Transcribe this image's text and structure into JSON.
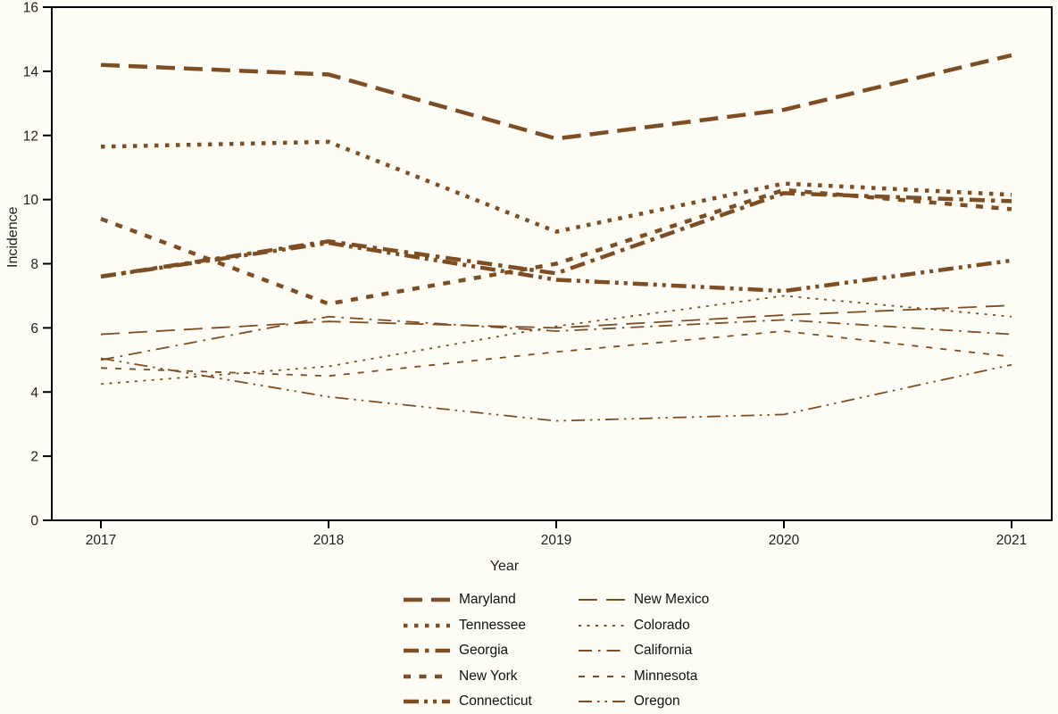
{
  "figure": {
    "background_color": "#fdfdf6",
    "line_color": "#7d4e24",
    "text_color": "#1f1f1f",
    "axis_color": "#000000",
    "xlabel": "Year",
    "ylabel": "Incidence"
  },
  "chart_data": {
    "type": "line",
    "title": "",
    "xlabel": "Year",
    "ylabel": "Incidence",
    "x": [
      2017,
      2018,
      2019,
      2020,
      2021
    ],
    "ylim": [
      0,
      16
    ],
    "ytick_step": 2,
    "grid": false,
    "legend_position": "bottom, two columns, column-major order",
    "line_color": "#7d4e24",
    "series": [
      {
        "name": "Maryland",
        "weight": "thick",
        "pattern": "long-dash",
        "values": [
          14.2,
          13.9,
          11.9,
          12.8,
          14.5
        ]
      },
      {
        "name": "Tennessee",
        "weight": "thick",
        "pattern": "dot",
        "values": [
          11.65,
          11.8,
          9.0,
          10.5,
          10.15
        ]
      },
      {
        "name": "Georgia",
        "weight": "thick",
        "pattern": "dash-dot",
        "values": [
          7.6,
          8.7,
          7.7,
          10.2,
          9.95
        ]
      },
      {
        "name": "New York",
        "weight": "thick",
        "pattern": "short-dash",
        "values": [
          9.4,
          6.75,
          8.0,
          10.3,
          9.7
        ]
      },
      {
        "name": "Connecticut",
        "weight": "thick",
        "pattern": "dash-dot-dot",
        "values": [
          7.6,
          8.65,
          7.5,
          7.15,
          8.1
        ]
      },
      {
        "name": "New Mexico",
        "weight": "thin",
        "pattern": "long-dash",
        "values": [
          5.8,
          6.2,
          6.0,
          6.4,
          6.7
        ]
      },
      {
        "name": "Colorado",
        "weight": "thin",
        "pattern": "dot",
        "values": [
          4.25,
          4.8,
          6.05,
          7.0,
          6.35
        ]
      },
      {
        "name": "California",
        "weight": "thin",
        "pattern": "dash-dot",
        "values": [
          5.0,
          6.35,
          5.9,
          6.25,
          5.8
        ]
      },
      {
        "name": "Minnesota",
        "weight": "thin",
        "pattern": "short-dash",
        "values": [
          4.75,
          4.5,
          5.25,
          5.9,
          5.1
        ]
      },
      {
        "name": "Oregon",
        "weight": "thin",
        "pattern": "dash-dot-dot",
        "values": [
          5.05,
          3.85,
          3.1,
          3.3,
          4.85
        ]
      }
    ]
  }
}
